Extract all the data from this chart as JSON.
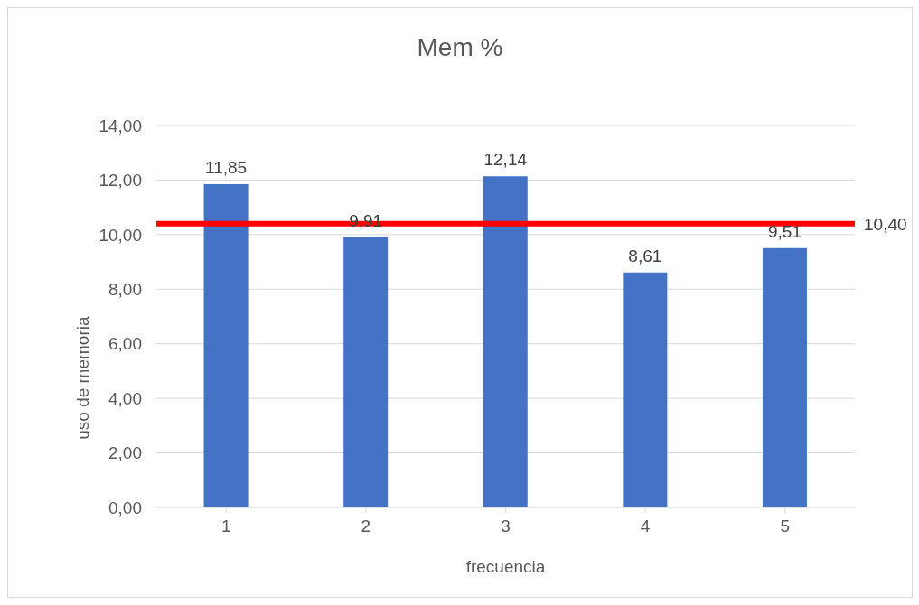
{
  "chart_data": {
    "type": "bar",
    "title": "Mem %",
    "xlabel": "frecuencia",
    "ylabel": "uso de memoria",
    "categories": [
      "1",
      "2",
      "3",
      "4",
      "5"
    ],
    "values": [
      11.85,
      9.91,
      12.14,
      8.61,
      9.51
    ],
    "value_labels": [
      "11,85",
      "9,91",
      "12,14",
      "8,61",
      "9,51"
    ],
    "color": "#4472c4",
    "ylim": [
      0,
      14
    ],
    "yticks": [
      {
        "value": 0,
        "label": "0,00"
      },
      {
        "value": 2,
        "label": "2,00"
      },
      {
        "value": 4,
        "label": "4,00"
      },
      {
        "value": 6,
        "label": "6,00"
      },
      {
        "value": 8,
        "label": "8,00"
      },
      {
        "value": 10,
        "label": "10,00"
      },
      {
        "value": 12,
        "label": "12,00"
      },
      {
        "value": 14,
        "label": "14,00"
      }
    ],
    "ref_lines": [
      {
        "axis": "y",
        "value": 10.4,
        "label": "10,40",
        "color": "#ff0000"
      }
    ],
    "grid": "y"
  }
}
